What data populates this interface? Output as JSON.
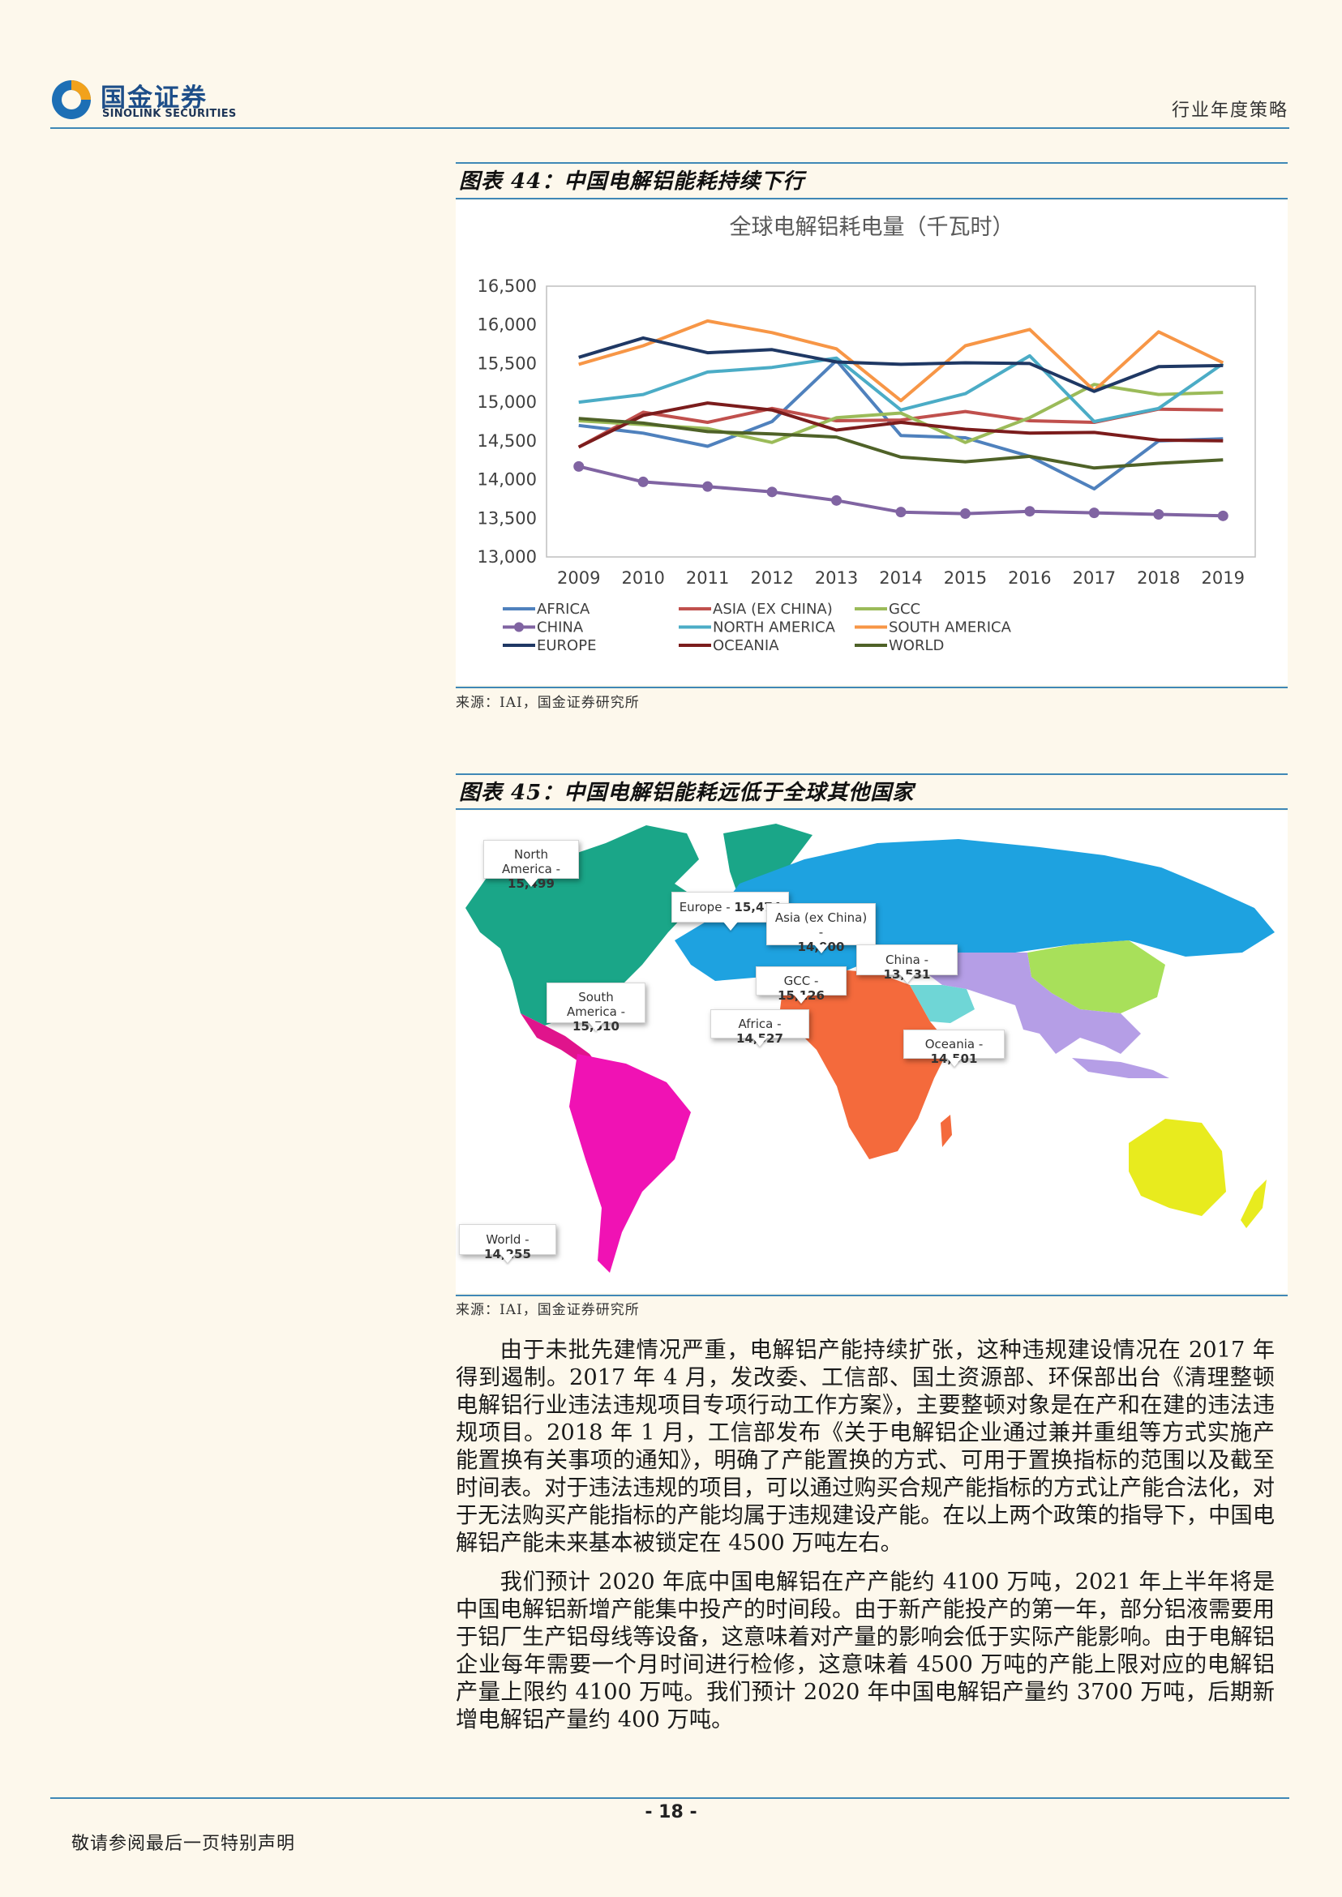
{
  "header": {
    "logo_cn": "国金证券",
    "logo_en": "SINOLINK SECURITIES",
    "report_type": "行业年度策略"
  },
  "figure44": {
    "title": "图表 44：中国电解铝能耗持续下行",
    "source": "来源：IAI，国金证券研究所"
  },
  "chart_data": {
    "type": "line",
    "title": "全球电解铝耗电量（千瓦时）",
    "x": [
      2009,
      2010,
      2011,
      2012,
      2013,
      2014,
      2015,
      2016,
      2017,
      2018,
      2019
    ],
    "ylim": [
      13000,
      16500
    ],
    "yticks": [
      "16,500",
      "16,000",
      "15,500",
      "15,000",
      "14,500",
      "14,000",
      "13,500",
      "13,000"
    ],
    "ytick_values": [
      16500,
      16000,
      15500,
      15000,
      14500,
      14000,
      13500,
      13000
    ],
    "grid": "outer frame only",
    "legend": "bottom",
    "series": [
      {
        "name": "AFRICA",
        "color": "#4f81bd",
        "values": [
          14700,
          14600,
          14430,
          14750,
          15540,
          14570,
          14540,
          14300,
          13880,
          14500,
          14527
        ]
      },
      {
        "name": "ASIA (EX CHINA)",
        "color": "#c0504d",
        "values": [
          14420,
          14870,
          14740,
          14920,
          14760,
          14770,
          14880,
          14760,
          14740,
          14910,
          14900
        ]
      },
      {
        "name": "GCC",
        "color": "#9bbb59",
        "values": [
          14760,
          14710,
          14660,
          14480,
          14800,
          14860,
          14480,
          14800,
          15230,
          15100,
          15126
        ]
      },
      {
        "name": "CHINA",
        "color": "#8064a2",
        "marker": true,
        "values": [
          14170,
          13970,
          13910,
          13840,
          13730,
          13580,
          13560,
          13590,
          13570,
          13550,
          13531
        ]
      },
      {
        "name": "NORTH AMERICA",
        "color": "#4bacc6",
        "values": [
          15000,
          15100,
          15390,
          15450,
          15570,
          14900,
          15110,
          15600,
          14750,
          14920,
          15499
        ]
      },
      {
        "name": "SOUTH AMERICA",
        "color": "#f79646",
        "values": [
          15490,
          15730,
          16050,
          15900,
          15690,
          15020,
          15730,
          15940,
          15150,
          15910,
          15510
        ]
      },
      {
        "name": "EUROPE",
        "color": "#1f3864",
        "values": [
          15580,
          15830,
          15640,
          15680,
          15520,
          15490,
          15510,
          15500,
          15140,
          15460,
          15474
        ]
      },
      {
        "name": "OCEANIA",
        "color": "#7b1c1c",
        "values": [
          14420,
          14830,
          14990,
          14900,
          14640,
          14740,
          14650,
          14600,
          14610,
          14510,
          14501
        ]
      },
      {
        "name": "WORLD",
        "color": "#4f6228",
        "values": [
          14790,
          14730,
          14620,
          14590,
          14550,
          14290,
          14230,
          14300,
          14150,
          14210,
          14255
        ]
      }
    ]
  },
  "figure45": {
    "title": "图表 45：中国电解铝能耗远低于全球其他国家",
    "source": "来源：IAI，国金证券研究所",
    "callouts": [
      {
        "id": "north-america",
        "label": "North America -",
        "value": "15,499"
      },
      {
        "id": "europe",
        "label": "Europe -",
        "value": "15,474"
      },
      {
        "id": "asia",
        "label": "Asia (ex China) -",
        "value": "14,900"
      },
      {
        "id": "china",
        "label": "China -",
        "value": "13,531"
      },
      {
        "id": "gcc",
        "label": "GCC -",
        "value": "15,126"
      },
      {
        "id": "south-america",
        "label": "South America -",
        "value": "15,510"
      },
      {
        "id": "africa",
        "label": "Africa -",
        "value": "14,527"
      },
      {
        "id": "oceania",
        "label": "Oceania -",
        "value": "14,501"
      },
      {
        "id": "world",
        "label": "World -",
        "value": "14,255"
      }
    ],
    "region_colors": {
      "north_america": "#1aa688",
      "central_america": "#e0148c",
      "south_america": "#f012b4",
      "europe_asia": "#1ea2e0",
      "china": "#a8e05a",
      "asia_south": "#b59ee6",
      "africa": "#f46a3c",
      "gcc": "#6fd6d6",
      "oceania": "#e8eb1e"
    }
  },
  "body": {
    "para1": "由于未批先建情况严重，电解铝产能持续扩张，这种违规建设情况在 2017 年得到遏制。2017 年 4 月，发改委、工信部、国土资源部、环保部出台《清理整顿电解铝行业违法违规项目专项行动工作方案》，主要整顿对象是在产和在建的违法违规项目。2018 年 1 月，工信部发布《关于电解铝企业通过兼并重组等方式实施产能置换有关事项的通知》，明确了产能置换的方式、可用于置换指标的范围以及截至时间表。对于违法违规的项目，可以通过购买合规产能指标的方式让产能合法化，对于无法购买产能指标的产能均属于违规建设产能。在以上两个政策的指导下，中国电解铝产能未来基本被锁定在 4500 万吨左右。",
    "para2": "我们预计 2020 年底中国电解铝在产产能约 4100 万吨，2021 年上半年将是中国电解铝新增产能集中投产的时间段。由于新产能投产的第一年，部分铝液需要用于铝厂生产铝母线等设备，这意味着对产量的影响会低于实际产能影响。由于电解铝企业每年需要一个月时间进行检修，这意味着 4500 万吨的产能上限对应的电解铝产量上限约 4100 万吨。我们预计 2020 年中国电解铝产量约 3700 万吨，后期新增电解铝产量约 400 万吨。"
  },
  "footer": {
    "page": "- 18 -",
    "note": "敬请参阅最后一页特别声明"
  }
}
